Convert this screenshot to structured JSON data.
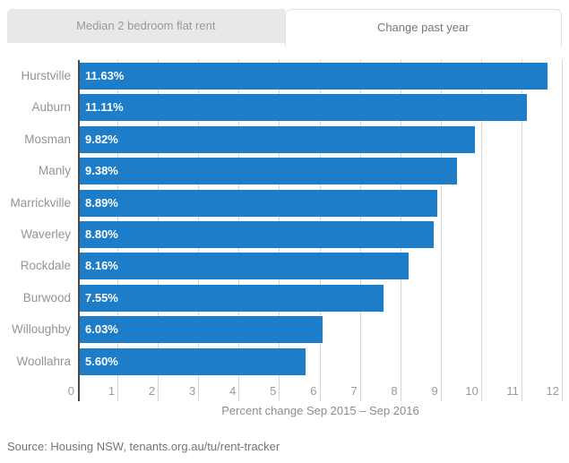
{
  "tabs": [
    {
      "label": "Median 2 bedroom flat rent",
      "active": false
    },
    {
      "label": "Change past year",
      "active": true
    }
  ],
  "chart_data": {
    "type": "bar",
    "orientation": "horizontal",
    "categories": [
      "Hurstville",
      "Auburn",
      "Mosman",
      "Manly",
      "Marrickville",
      "Waverley",
      "Rockdale",
      "Burwood",
      "Willoughby",
      "Woollahra"
    ],
    "values": [
      11.63,
      11.11,
      9.82,
      9.38,
      8.89,
      8.8,
      8.16,
      7.55,
      6.03,
      5.6
    ],
    "value_labels": [
      "11.63%",
      "11.11%",
      "9.82%",
      "9.38%",
      "8.89%",
      "8.80%",
      "8.16%",
      "7.55%",
      "6.03%",
      "5.60%"
    ],
    "xlabel": "Percent change Sep 2015 – Sep 2016",
    "xlim": [
      0,
      12
    ],
    "xticks": [
      0,
      1,
      2,
      3,
      4,
      5,
      6,
      7,
      8,
      9,
      10,
      11,
      12
    ],
    "grid": true,
    "legend": "none",
    "bar_color": "#1e7dc9"
  },
  "source": "Source: Housing NSW, tenants.org.au/tu/rent-tracker",
  "colors": {
    "bar": "#1e7dc9",
    "tab_inactive_bg": "#e8e8e8",
    "gridline": "#d6d6d6",
    "axis_zero_line": "#4a4a4a",
    "value_label_text": "#ffffff"
  }
}
